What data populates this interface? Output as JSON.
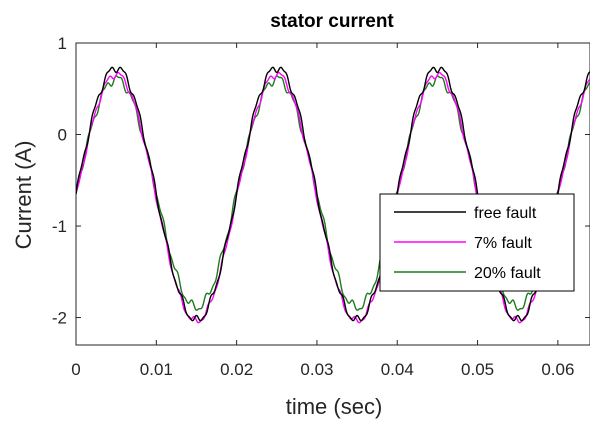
{
  "chart_data": {
    "type": "line",
    "title": "stator current",
    "xlabel": "time (sec)",
    "ylabel": "Current (A)",
    "xlim": [
      0,
      0.064
    ],
    "ylim": [
      -2.3,
      1
    ],
    "xticks": [
      0,
      0.01,
      0.02,
      0.03,
      0.04,
      0.05,
      0.06
    ],
    "xtick_labels": [
      "0",
      "0.01",
      "0.02",
      "0.03",
      "0.04",
      "0.05",
      "0.06"
    ],
    "yticks": [
      -2,
      -1,
      0,
      1
    ],
    "ytick_labels": [
      "-2",
      "-1",
      "0",
      "1"
    ],
    "grid": false,
    "legend_position": "right",
    "frequency_hz": 50,
    "series": [
      {
        "name": "free fault",
        "color": "#000000",
        "offset": -0.65,
        "amplitude": 1.38,
        "ripple": 0.035
      },
      {
        "name": "7% fault",
        "color": "#ff00ff",
        "offset": -0.69,
        "amplitude": 1.35,
        "ripple": 0.03
      },
      {
        "name": "20% fault",
        "color": "#1f7a1f",
        "offset": -0.64,
        "amplitude": 1.25,
        "ripple": 0.04
      }
    ]
  }
}
